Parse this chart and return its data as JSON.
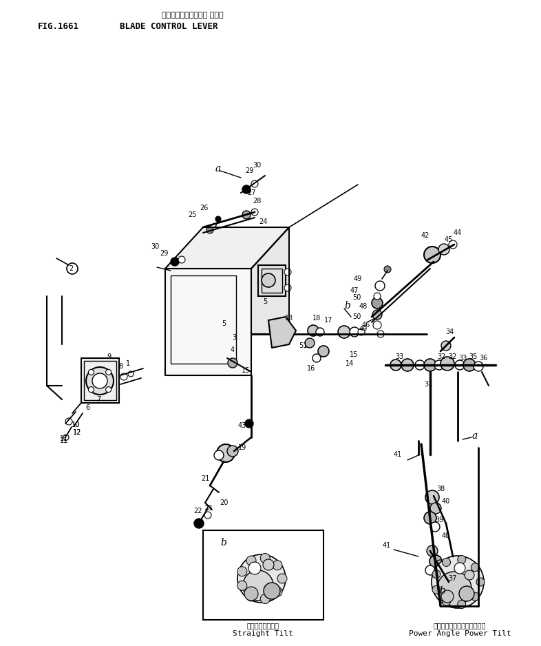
{
  "title_japanese": "ブレードコントロール レバー",
  "title_english": "BLADE CONTROL LEVER",
  "fig_number": "FIG.1661",
  "bg_color": "#ffffff",
  "lc": "#000000",
  "tc": "#000000"
}
